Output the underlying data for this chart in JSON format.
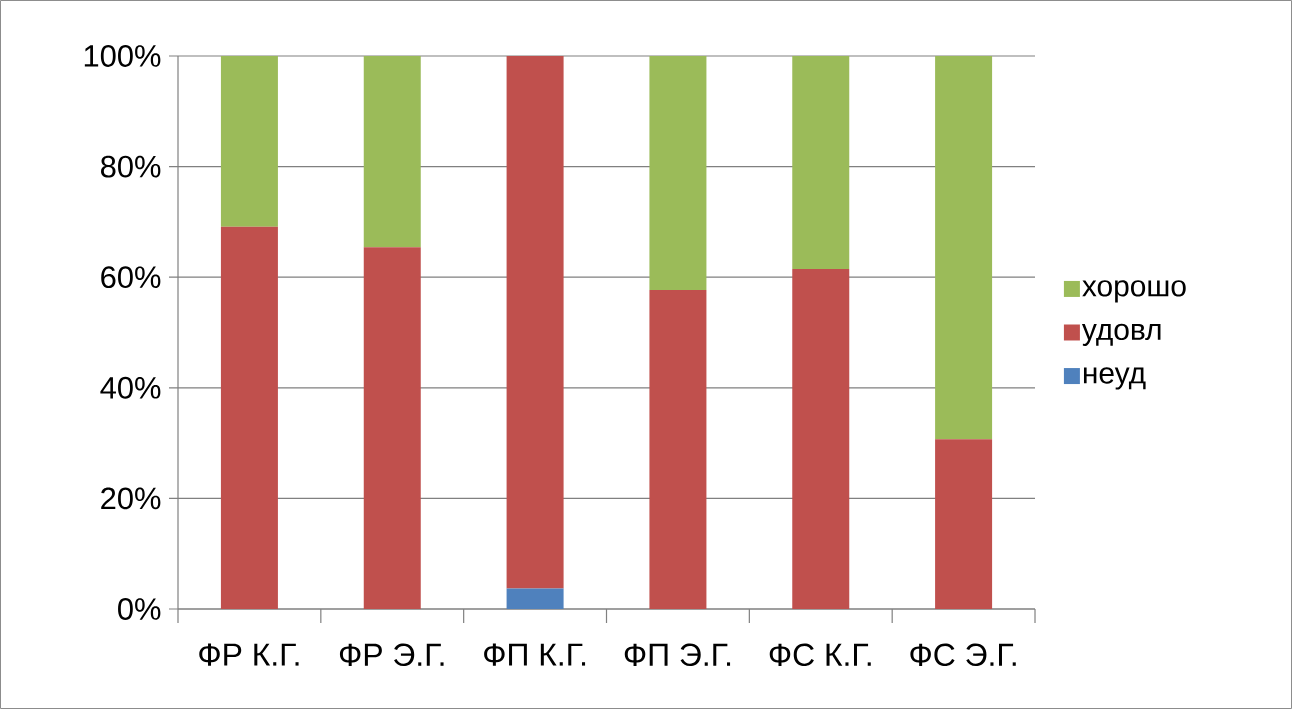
{
  "chart_data": {
    "type": "bar",
    "stacked": true,
    "categories": [
      "ФР К.Г.",
      "ФР Э.Г.",
      "ФП К.Г.",
      "ФП Э.Г.",
      "ФС К.Г.",
      "ФС Э.Г."
    ],
    "series": [
      {
        "name": "неуд",
        "color": "#4f81bd",
        "values": [
          0,
          0,
          3.7,
          0,
          0,
          0
        ]
      },
      {
        "name": "удовл",
        "color": "#c0504d",
        "values": [
          69.1,
          65.4,
          96.3,
          57.7,
          61.5,
          30.7
        ]
      },
      {
        "name": "хорошо",
        "color": "#9bbb59",
        "values": [
          30.9,
          34.6,
          0,
          42.3,
          38.5,
          69.3
        ]
      }
    ],
    "ylim": [
      0,
      100
    ],
    "yticks": [
      {
        "value": 0,
        "label": "0%"
      },
      {
        "value": 20,
        "label": "20%"
      },
      {
        "value": 40,
        "label": "40%"
      },
      {
        "value": 60,
        "label": "60%"
      },
      {
        "value": 80,
        "label": "80%"
      },
      {
        "value": 100,
        "label": "100%"
      }
    ],
    "grid": "y",
    "legend": "right"
  }
}
